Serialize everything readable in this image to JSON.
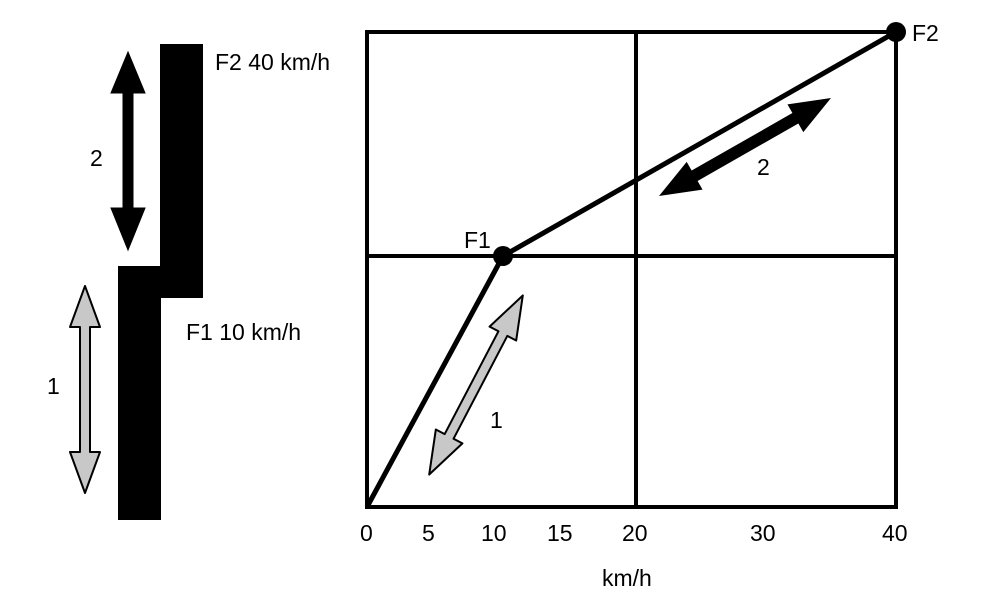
{
  "left_diagram": {
    "f2_label": "F2 40 km/h",
    "f1_label": "F1 10 km/h",
    "arrow_2_label": "2",
    "arrow_1_label": "1"
  },
  "graph": {
    "x_unit_label": "km/h",
    "x_ticks": [
      "0",
      "5",
      "10",
      "15",
      "20",
      "30",
      "40"
    ],
    "point_labels": {
      "f1": "F1",
      "f2": "F2"
    },
    "arrow_1_label": "1",
    "arrow_2_label": "2"
  },
  "colors": {
    "dark_arrow": "#000000",
    "light_arrow": "#c8c8c8",
    "line": "#000000"
  },
  "icons": [
    "double-headed-arrow-icon",
    "double-headed-arrow-icon"
  ]
}
